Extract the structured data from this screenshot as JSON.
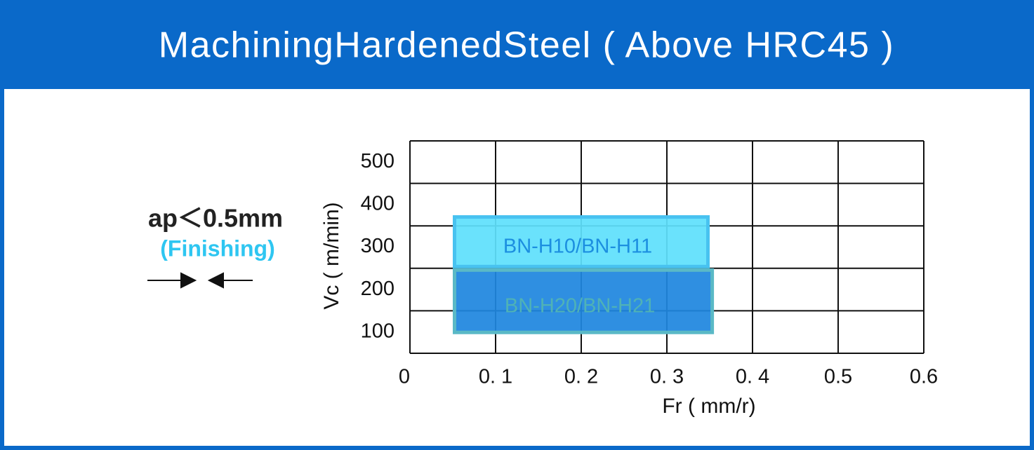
{
  "header": {
    "title": "MachiningHardenedSteel ( Above HRC45 )"
  },
  "note": {
    "depth": "ap＜0.5mm",
    "mode": "(Finishing)"
  },
  "chart_data": {
    "type": "range",
    "xlabel": "Fr ( mm/r)",
    "ylabel": "Vc ( m/min)",
    "xlim": [
      0,
      0.6
    ],
    "ylim": [
      50,
      550
    ],
    "xticks": [
      0,
      {
        "value": 0.1,
        "label": "0. 1"
      },
      {
        "value": 0.2,
        "label": "0. 2"
      },
      {
        "value": 0.3,
        "label": "0. 3"
      },
      {
        "value": 0.4,
        "label": "0. 4"
      },
      0.5,
      0.6
    ],
    "yticks": [
      100,
      200,
      300,
      400,
      500
    ],
    "grid": true,
    "series": [
      {
        "name": "BN-H10/BN-H11",
        "color": "#5fe0fc",
        "border": "#48c2f0",
        "text_color": "#1c8fe0",
        "x": [
          0.05,
          0.35
        ],
        "values": [
          250,
          375
        ]
      },
      {
        "name": "BN-H20/BN-H21",
        "color": "#1f86df",
        "border": "#5ab9c6",
        "text_color": "#4fb2b6",
        "x": [
          0.05,
          0.355
        ],
        "values": [
          95,
          250
        ]
      }
    ]
  }
}
